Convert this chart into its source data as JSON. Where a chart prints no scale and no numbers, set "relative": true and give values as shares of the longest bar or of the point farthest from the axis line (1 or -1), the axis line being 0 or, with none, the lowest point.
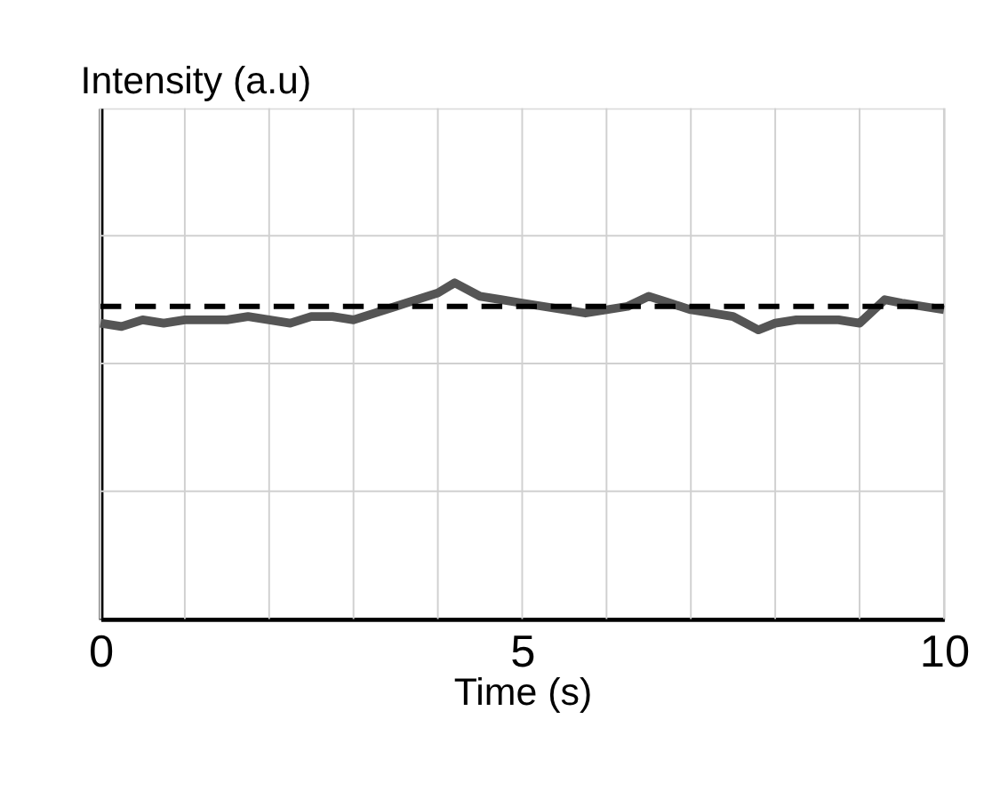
{
  "chart_data": {
    "type": "line",
    "relative": true,
    "xlabel": "Time (s)",
    "ylabel": "Intensity (a.u)",
    "xlim": [
      0,
      10
    ],
    "xticks": [
      0,
      5,
      10
    ],
    "grid": true,
    "series": [
      {
        "color": "#555555",
        "line_style": "solid",
        "marker": "none",
        "x": [
          0,
          0.25,
          0.5,
          0.75,
          1,
          1.25,
          1.5,
          1.75,
          2,
          2.25,
          2.5,
          2.75,
          3,
          3.25,
          3.5,
          3.75,
          4,
          4.2,
          4.5,
          4.75,
          5,
          5.25,
          5.5,
          5.75,
          6,
          6.25,
          6.5,
          6.75,
          7,
          7.25,
          7.5,
          7.8,
          8,
          8.25,
          8.5,
          8.75,
          9,
          9.3,
          9.5,
          9.75,
          10
        ],
        "values": [
          0.88,
          0.87,
          0.89,
          0.88,
          0.89,
          0.89,
          0.89,
          0.9,
          0.89,
          0.88,
          0.9,
          0.9,
          0.89,
          0.91,
          0.93,
          0.95,
          0.97,
          1.0,
          0.96,
          0.95,
          0.94,
          0.93,
          0.92,
          0.91,
          0.92,
          0.93,
          0.96,
          0.94,
          0.92,
          0.91,
          0.9,
          0.86,
          0.88,
          0.89,
          0.89,
          0.89,
          0.88,
          0.95,
          0.94,
          0.93,
          0.92
        ]
      }
    ],
    "ref_lines": [
      {
        "axis": "y",
        "value": 0.93,
        "color": "#000000",
        "line_style": "dashed"
      }
    ]
  }
}
